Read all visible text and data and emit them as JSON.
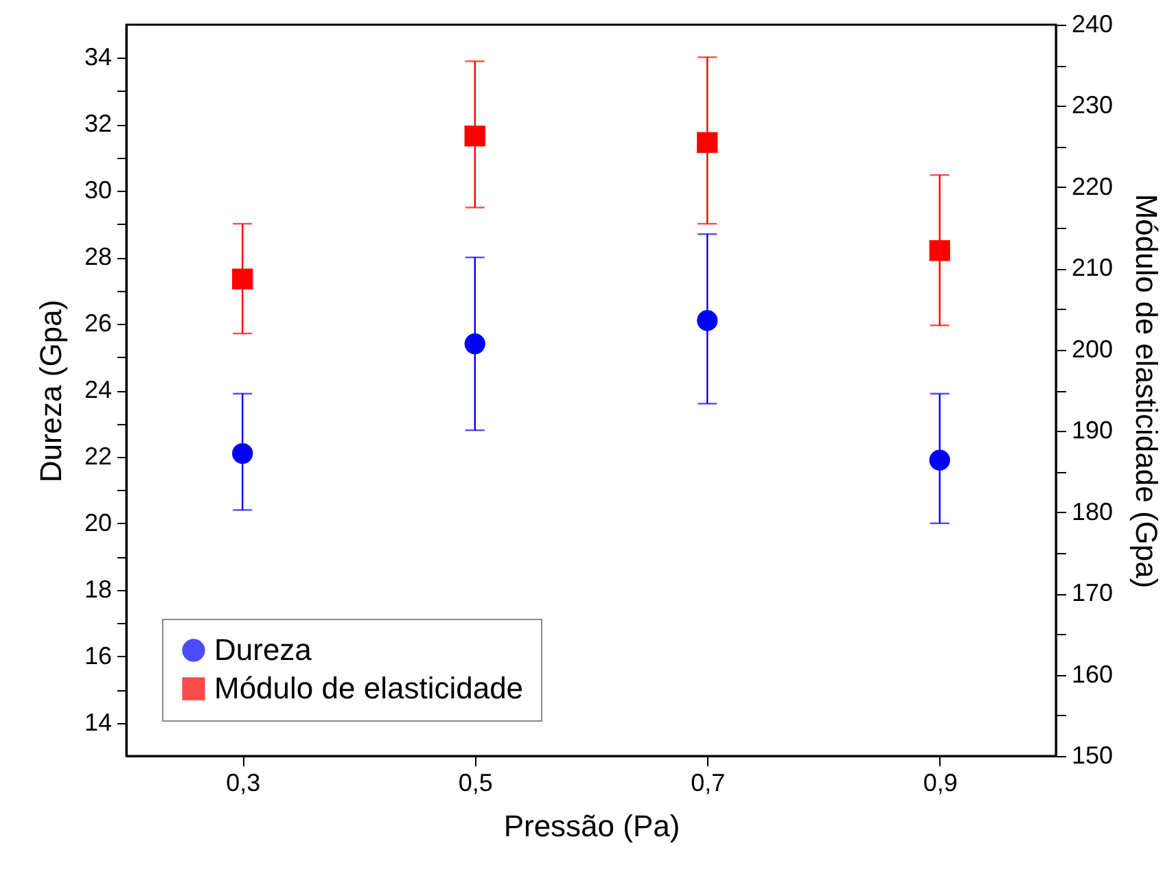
{
  "chart_data": {
    "type": "scatter",
    "xlabel": "Pressão (Pa)",
    "ylabel": "Dureza (Gpa)",
    "y2label": "Módulo de elasticidade (Gpa)",
    "x": [
      0.3,
      0.5,
      0.7,
      0.9
    ],
    "xlim": [
      0.2,
      1.0
    ],
    "xticks": [
      {
        "value": 0.3,
        "label": "0,3"
      },
      {
        "value": 0.5,
        "label": "0,5"
      },
      {
        "value": 0.7,
        "label": "0,7"
      },
      {
        "value": 0.9,
        "label": "0,9"
      }
    ],
    "ylim": [
      13,
      35
    ],
    "yticks": [
      14,
      {
        "value": 15,
        "label": null
      },
      16,
      {
        "value": 17,
        "label": null
      },
      18,
      {
        "value": 19,
        "label": null
      },
      20,
      {
        "value": 21,
        "label": null
      },
      22,
      {
        "value": 23,
        "label": null
      },
      24,
      {
        "value": 25,
        "label": null
      },
      26,
      {
        "value": 27,
        "label": null
      },
      28,
      {
        "value": 29,
        "label": null
      },
      30,
      {
        "value": 31,
        "label": null
      },
      32,
      {
        "value": 33,
        "label": null
      },
      34
    ],
    "y2lim": [
      150,
      240
    ],
    "y2ticks": [
      150,
      {
        "value": 155,
        "label": null
      },
      160,
      {
        "value": 165,
        "label": null
      },
      170,
      {
        "value": 175,
        "label": null
      },
      180,
      {
        "value": 185,
        "label": null
      },
      190,
      {
        "value": 195,
        "label": null
      },
      200,
      {
        "value": 205,
        "label": null
      },
      210,
      {
        "value": 215,
        "label": null
      },
      220,
      {
        "value": 225,
        "label": null
      },
      230,
      {
        "value": 235,
        "label": null
      },
      240
    ],
    "grid": false,
    "legend": "bottom left",
    "series": [
      {
        "name": "Dureza",
        "color": "#0000ff",
        "marker": "circle",
        "values": [
          22.1,
          25.4,
          26.1,
          21.9
        ],
        "errors": [
          [
            20.4,
            23.9
          ],
          [
            22.8,
            28.0
          ],
          [
            23.6,
            28.7
          ],
          [
            20.0,
            23.9
          ]
        ]
      },
      {
        "name": "Módulo de elasticidade",
        "color": "#ff0000",
        "marker": "square",
        "axis": "y2",
        "values": [
          208.7,
          226.3,
          225.5,
          212.2
        ],
        "errors": [
          [
            202,
            215.5
          ],
          [
            217.5,
            235.5
          ],
          [
            215.5,
            236
          ],
          [
            203,
            221.5
          ]
        ]
      }
    ]
  }
}
